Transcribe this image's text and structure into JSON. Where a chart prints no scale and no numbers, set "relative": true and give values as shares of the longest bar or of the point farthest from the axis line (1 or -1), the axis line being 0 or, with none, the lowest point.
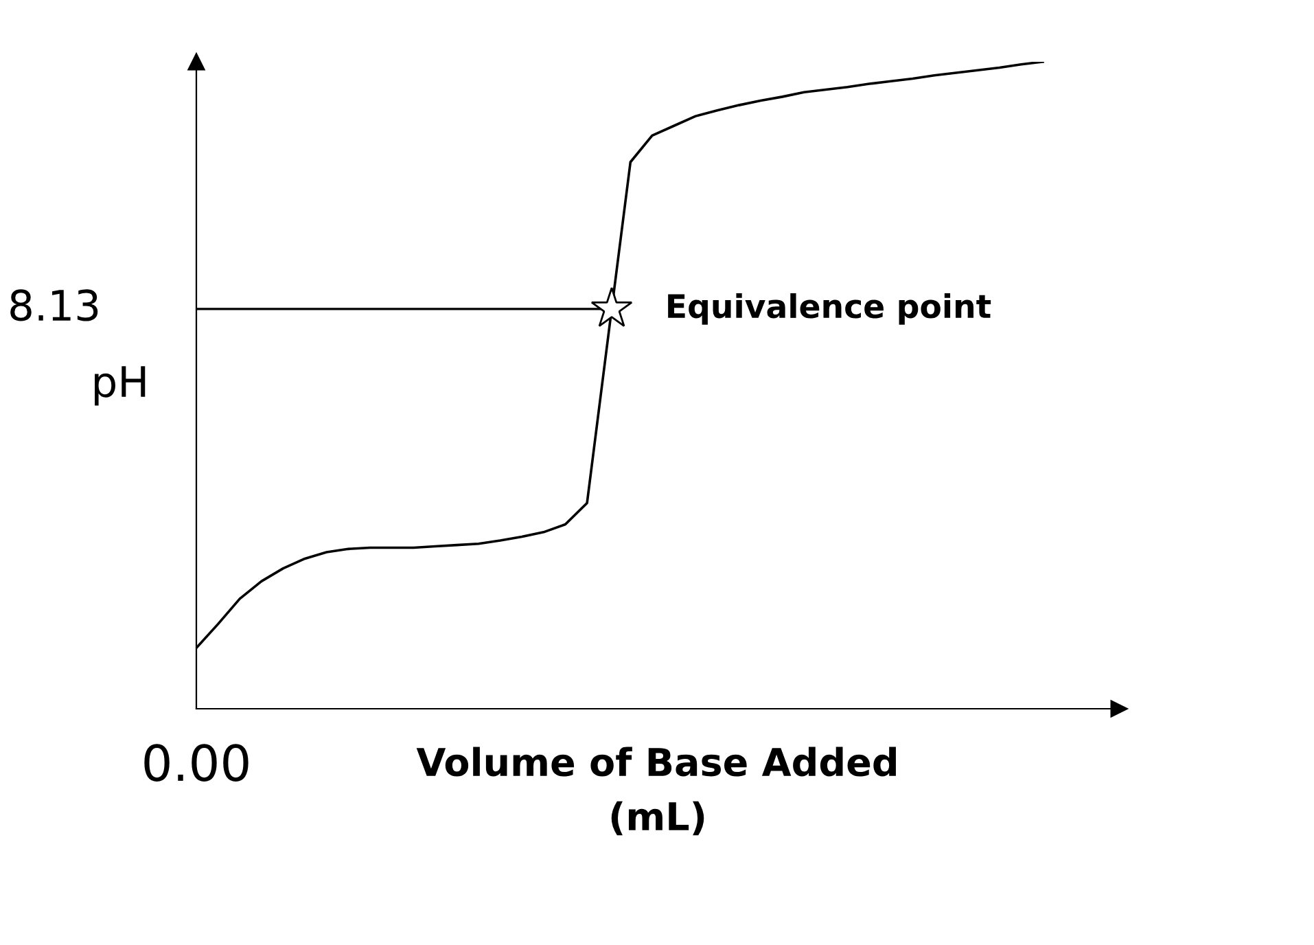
{
  "chart_data": {
    "type": "line",
    "relative": true,
    "ylabel": "pH",
    "xlabel": "Volume of Base Added\n(mL)",
    "categories": [
      null,
      null,
      null,
      null,
      null,
      null,
      null,
      null,
      null,
      null,
      null,
      null,
      null,
      null,
      null,
      null,
      null,
      null,
      null,
      null,
      null,
      null,
      null,
      null,
      null,
      null,
      null,
      null,
      null,
      null,
      null,
      null,
      null,
      null,
      null,
      null,
      null,
      null,
      null,
      null
    ],
    "series": [
      {
        "color": "#000000",
        "values": [
          0.094,
          0.131,
          0.17,
          0.197,
          0.217,
          0.232,
          0.242,
          0.247,
          0.249,
          0.249,
          0.249,
          0.251,
          0.253,
          0.255,
          0.26,
          0.266,
          0.273,
          0.285,
          0.318,
          0.582,
          0.845,
          0.886,
          0.901,
          0.916,
          0.925,
          0.933,
          0.94,
          0.946,
          0.953,
          0.957,
          0.961,
          0.966,
          0.97,
          0.974,
          0.979,
          0.983,
          0.987,
          0.991,
          0.996,
          1
        ]
      }
    ],
    "ref_lines": [
      {
        "axis": "y",
        "value": 0.618,
        "color": "#000000"
      }
    ],
    "annotations": [
      "Equivalence point",
      "8.13",
      "0.00"
    ]
  }
}
